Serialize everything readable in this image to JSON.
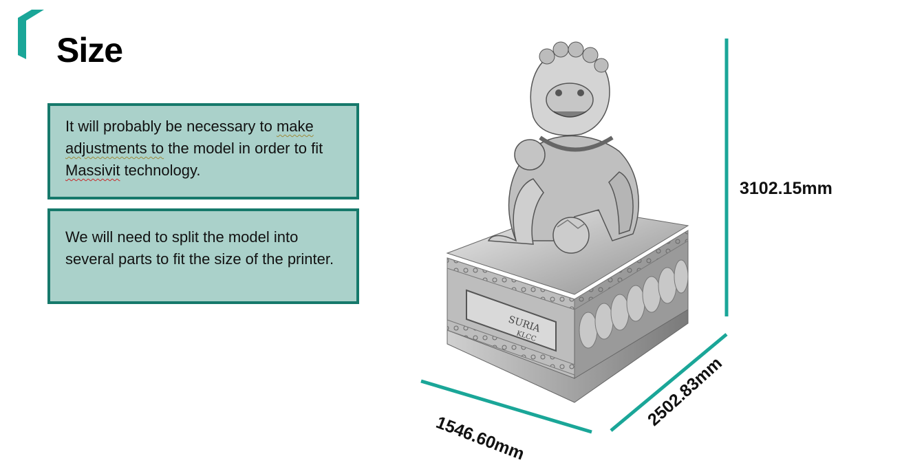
{
  "slide": {
    "title": "Size",
    "accent_color": "#1aa698",
    "box_fill": "#aad1ca",
    "box_border": "#16796b"
  },
  "notes": [
    {
      "pre": "It will probably be necessary to ",
      "gray_word_1": "make",
      "mid_line_break": " ",
      "gray_phrase": "adjustments to",
      "post": " the model in order to fit ",
      "red_word": "Massivit",
      "tail": " technology."
    },
    {
      "text": "We will need to split the model into several parts to fit the size of the printer."
    }
  ],
  "model": {
    "plaque_line1": "SURIA",
    "plaque_line2": "KLCC"
  },
  "dimensions": {
    "height": "3102.15mm",
    "width": "1546.60mm",
    "depth": "2502.83mm"
  }
}
